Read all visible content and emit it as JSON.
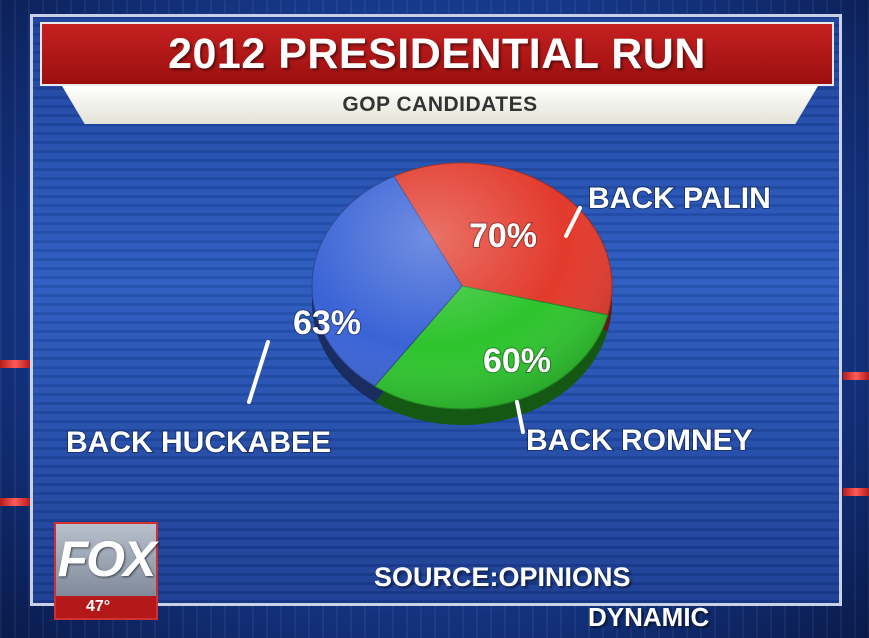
{
  "header": {
    "title": "2012 PRESIDENTIAL RUN",
    "subtitle": "GOP CANDIDATES"
  },
  "chart_data": {
    "type": "pie",
    "title": "2012 PRESIDENTIAL RUN",
    "subtitle": "GOP CANDIDATES",
    "slices": [
      {
        "label": "BACK PALIN",
        "value": 70,
        "value_label": "70%",
        "color": "#e23a2c"
      },
      {
        "label": "BACK ROMNEY",
        "value": 60,
        "value_label": "60%",
        "color": "#2dc42d"
      },
      {
        "label": "BACK HUCKABEE",
        "value": 63,
        "value_label": "63%",
        "color": "#3a63d6"
      }
    ],
    "source": "SOURCE:OPINIONS DYNAMIC"
  },
  "footer": {
    "source_line1": "SOURCE:OPINIONS",
    "source_line2": "DYNAMIC",
    "network_logo": "FOX",
    "temperature": "47°"
  },
  "colors": {
    "title_bar": "#b31818",
    "background": "#1f49a8"
  }
}
